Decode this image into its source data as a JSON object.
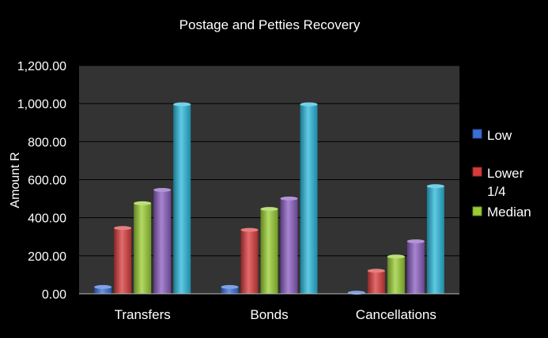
{
  "chart_data": {
    "type": "bar",
    "title": "Postage and Petties Recovery",
    "ylabel": "Amount R",
    "xlabel": "",
    "ylim": [
      0,
      1200
    ],
    "yticks": [
      "0.00",
      "200.00",
      "400.00",
      "600.00",
      "800.00",
      "1,000.00",
      "1,200.00"
    ],
    "ytick_values": [
      0,
      200,
      400,
      600,
      800,
      1000,
      1200
    ],
    "categories": [
      "Transfers",
      "Bonds",
      "Cancellations"
    ],
    "grid": true,
    "legend_position": "right",
    "legend_entries": [
      "Low",
      "Lower 1/4",
      "Median"
    ],
    "series": [
      {
        "name": "Low",
        "color": "#3a6fd8",
        "values": [
          40,
          40,
          10
        ]
      },
      {
        "name": "Lower 1/4",
        "color": "#d93a3a",
        "values": [
          350,
          340,
          125
        ]
      },
      {
        "name": "Median",
        "color": "#9acd32",
        "values": [
          480,
          450,
          200
        ]
      },
      {
        "color": "#8a5cc0",
        "values": [
          550,
          505,
          280
        ]
      },
      {
        "color": "#2ab8dc",
        "values": [
          1000,
          1000,
          570
        ]
      }
    ],
    "colors": {
      "background": "#000000",
      "plot_area": "#333333",
      "gridline": "#000000"
    }
  }
}
